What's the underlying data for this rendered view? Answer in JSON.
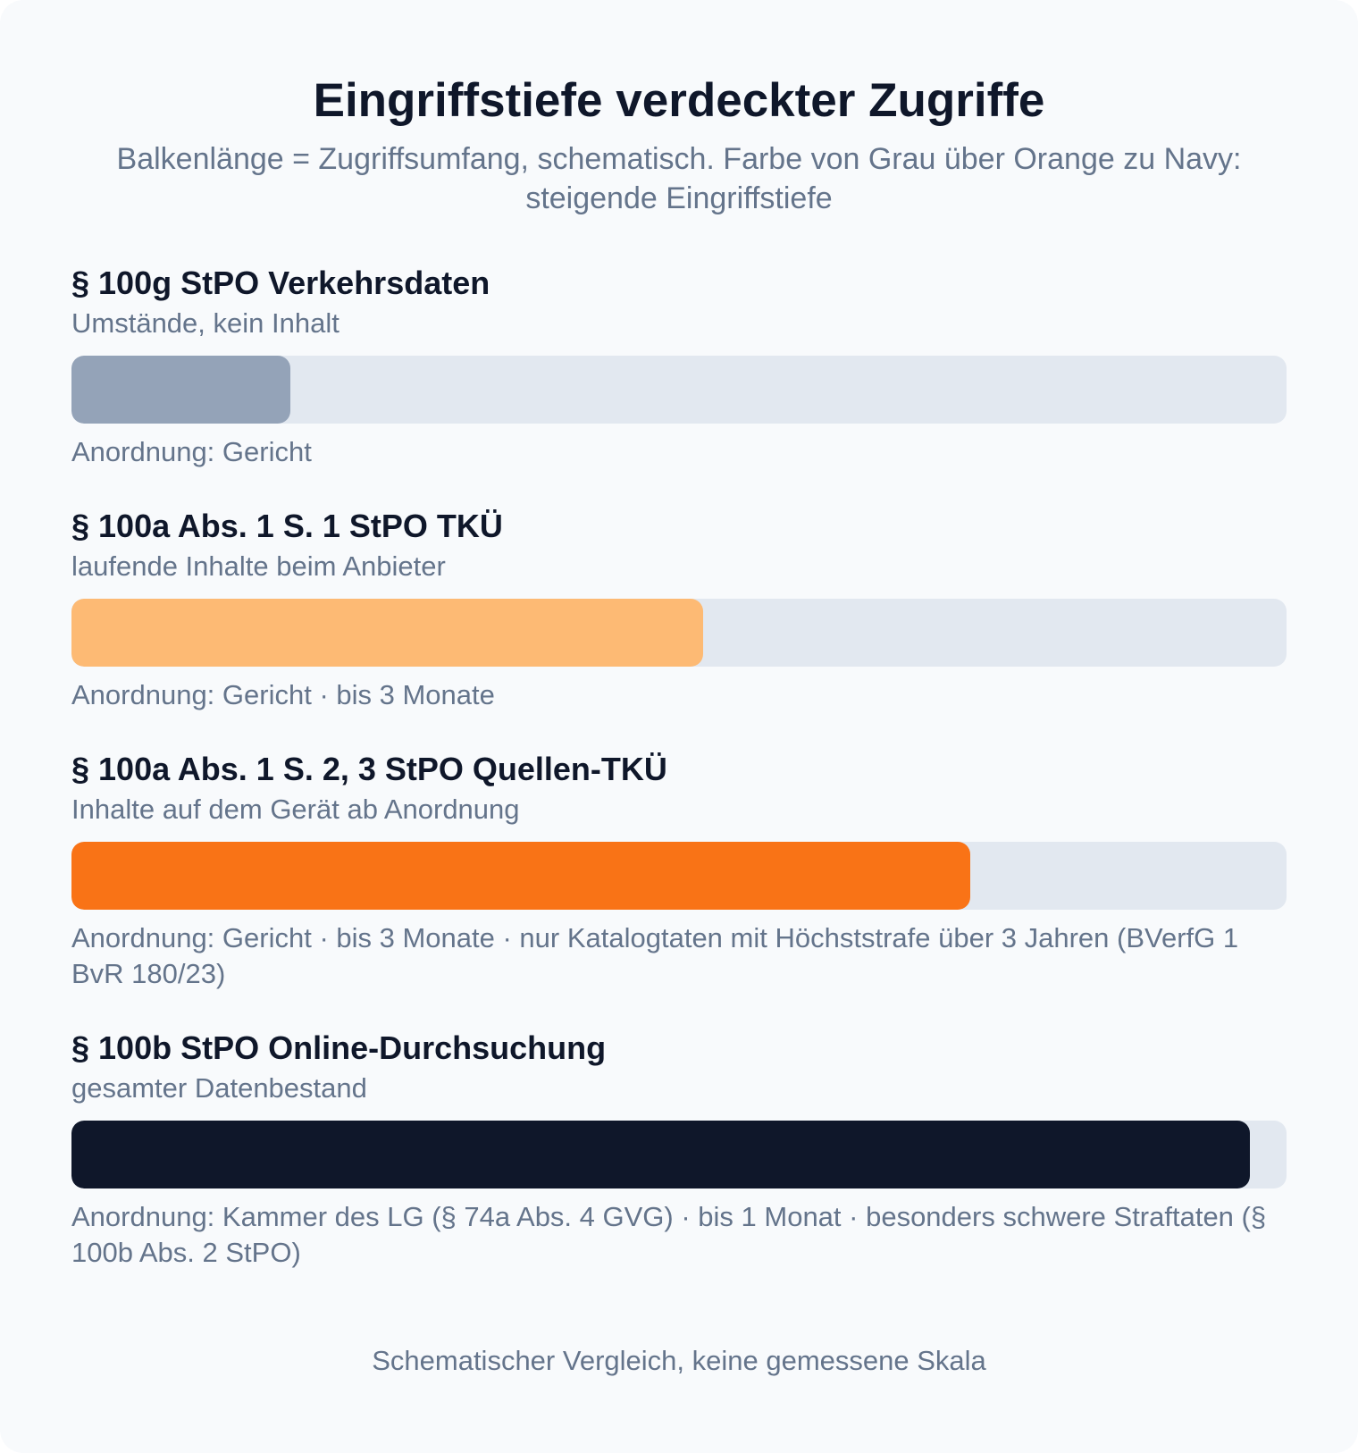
{
  "header": {
    "title": "Eingriffstiefe verdeckter Zugriffe",
    "subtitle": "Balkenlänge = Zugriffsumfang, schematisch. Farbe von Grau über Orange zu Navy: steigende Eingriffstiefe"
  },
  "chart_data": {
    "type": "bar",
    "orientation": "horizontal",
    "xlim": [
      0,
      1
    ],
    "categories": [
      "§ 100g StPO Verkehrsdaten",
      "§ 100a Abs. 1 S. 1 StPO TKÜ",
      "§ 100a Abs. 1 S. 2, 3 StPO Quellen-TKÜ",
      "§ 100b StPO Online-Durchsuchung"
    ],
    "values": [
      0.18,
      0.52,
      0.74,
      0.97
    ],
    "items": [
      {
        "title": "§ 100g StPO Verkehrsdaten",
        "description": "Umstände, kein Inhalt",
        "value": 0.18,
        "color": "#94a3b8",
        "note": "Anordnung: Gericht"
      },
      {
        "title": "§ 100a Abs. 1 S. 1 StPO TKÜ",
        "description": "laufende Inhalte beim Anbieter",
        "value": 0.52,
        "color": "#fdba74",
        "note": "Anordnung: Gericht · bis 3 Monate"
      },
      {
        "title": "§ 100a Abs. 1 S. 2, 3 StPO Quellen-TKÜ",
        "description": "Inhalte auf dem Gerät ab Anordnung",
        "value": 0.74,
        "color": "#f97316",
        "note": "Anordnung: Gericht · bis 3 Monate · nur Katalogtaten mit Höchststrafe über 3 Jahren (BVerfG 1 BvR 180/23)"
      },
      {
        "title": "§ 100b StPO Online-Durchsuchung",
        "description": "gesamter Datenbestand",
        "value": 0.97,
        "color": "#0f172a",
        "note": "Anordnung: Kammer des LG (§ 74a Abs. 4 GVG) · bis 1 Monat · besonders schwere Straftaten (§ 100b Abs. 2 StPO)"
      }
    ],
    "track_color": "#e2e8f0"
  },
  "footer": {
    "note": "Schematischer Vergleich, keine gemessene Skala"
  }
}
